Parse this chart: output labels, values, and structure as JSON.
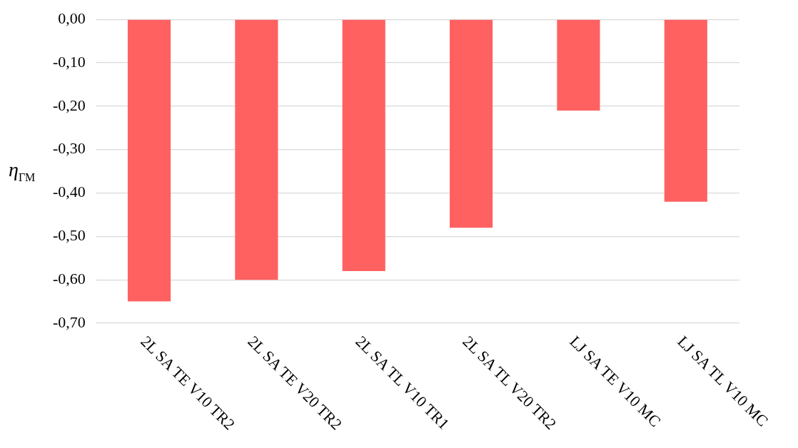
{
  "chart_data": {
    "type": "bar",
    "ylabel": "η$_{ГМ}$",
    "categories": [
      "2L SA TE V10 TR2",
      "2L SA TE V20 TR2",
      "2L SA TL V10 TR1",
      "2L SA TL V20 TR2",
      "LJ SA TE V10 MC",
      "LJ SA TL V10 MC"
    ],
    "values": [
      -0.65,
      -0.6,
      -0.58,
      -0.48,
      -0.21,
      -0.42
    ],
    "color": "#ff6161",
    "ylim": [
      -0.7,
      0
    ],
    "yticks": [
      {
        "value": 0,
        "label": "0,00"
      },
      {
        "value": -0.1,
        "label": "-0,10"
      },
      {
        "value": -0.2,
        "label": "-0,20"
      },
      {
        "value": -0.3,
        "label": "-0,30"
      },
      {
        "value": -0.4,
        "label": "-0,40"
      },
      {
        "value": -0.5,
        "label": "-0,50"
      },
      {
        "value": -0.6,
        "label": "-0,60"
      },
      {
        "value": -0.7,
        "label": "-0,70"
      }
    ],
    "grid": "y",
    "legend": false
  }
}
